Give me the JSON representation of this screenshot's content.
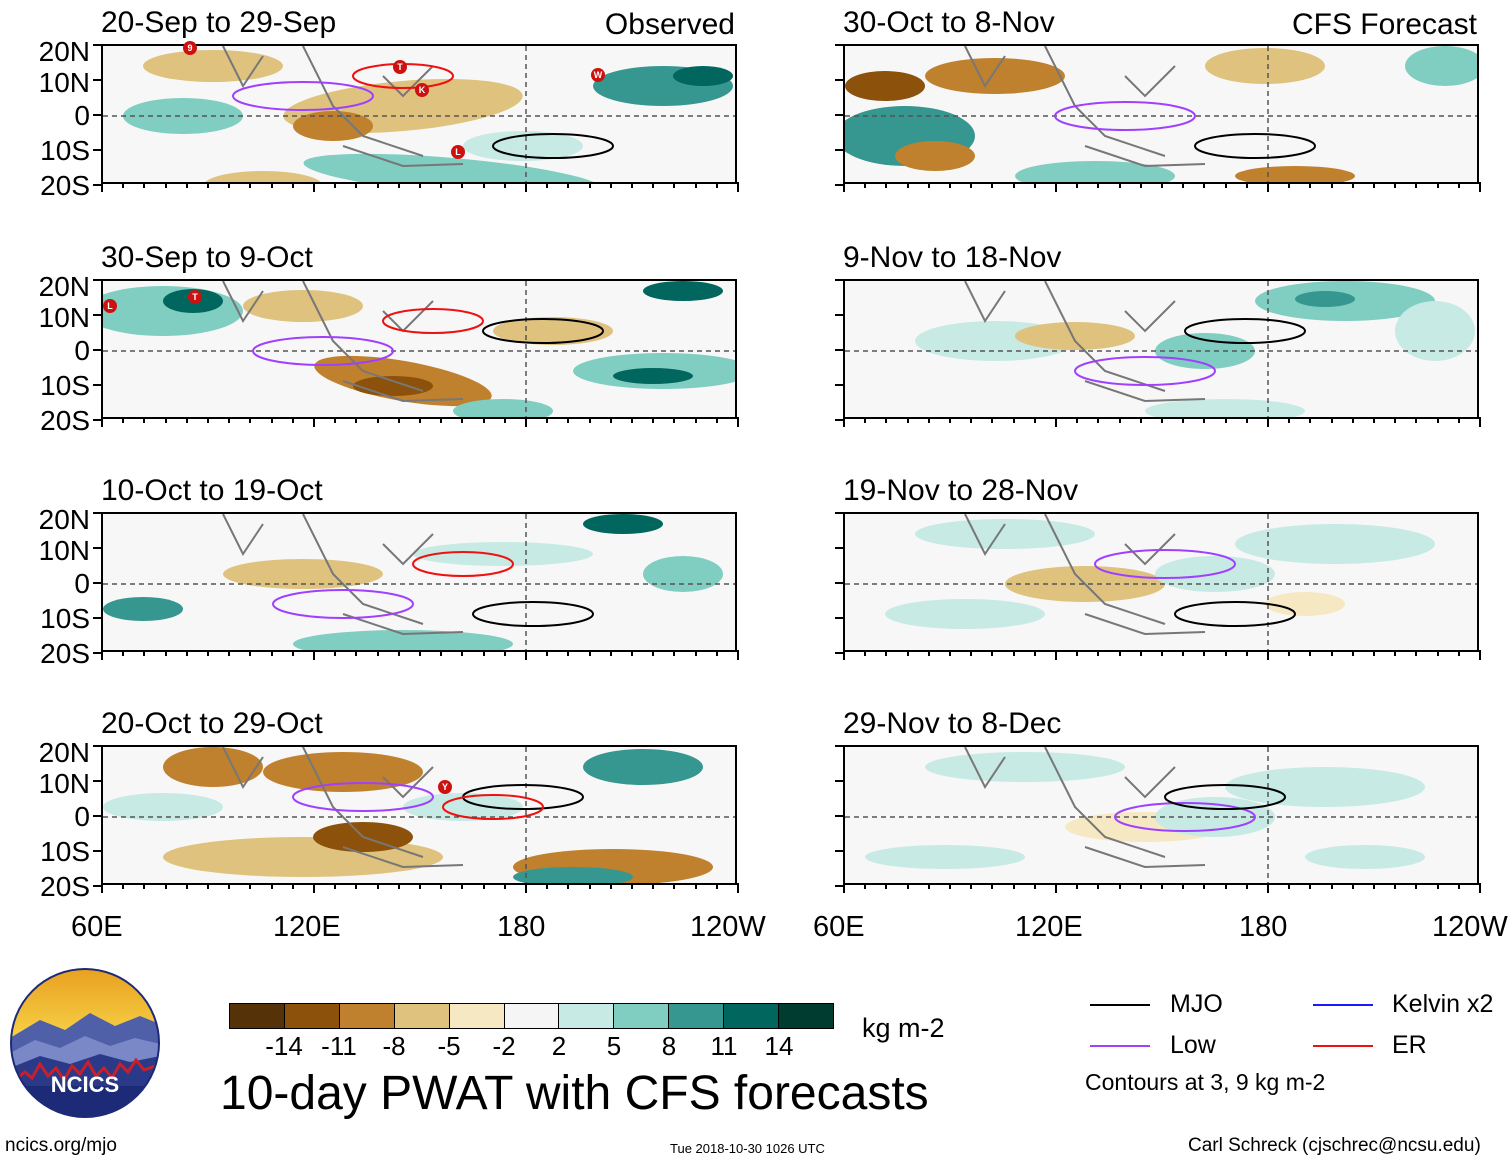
{
  "panels_left": [
    {
      "title": "20-Sep to 29-Sep",
      "header": "Observed"
    },
    {
      "title": "30-Sep to 9-Oct",
      "header": ""
    },
    {
      "title": "10-Oct to 19-Oct",
      "header": ""
    },
    {
      "title": "20-Oct to 29-Oct",
      "header": ""
    }
  ],
  "panels_right": [
    {
      "title": "30-Oct to 8-Nov",
      "header": "CFS Forecast"
    },
    {
      "title": "9-Nov to 18-Nov",
      "header": ""
    },
    {
      "title": "19-Nov to 28-Nov",
      "header": ""
    },
    {
      "title": "29-Nov to 8-Dec",
      "header": ""
    }
  ],
  "y_labels": [
    "20N",
    "10N",
    "0",
    "10S",
    "20S"
  ],
  "x_labels": [
    "60E",
    "120E",
    "180",
    "120W"
  ],
  "colorbar": {
    "colors": [
      "#553208",
      "#8c510a",
      "#bf812d",
      "#dfc27d",
      "#f6e8c3",
      "#f5f5f5",
      "#c7eae5",
      "#80cdc1",
      "#35978f",
      "#01665e",
      "#003c30"
    ],
    "labels": [
      "-14",
      "-11",
      "-8",
      "-5",
      "-2",
      "2",
      "5",
      "8",
      "11",
      "14"
    ],
    "units": "kg m-2"
  },
  "main_title": "10-day PWAT with CFS forecasts",
  "legend": {
    "mjo": {
      "label": "MJO",
      "color": "#000000"
    },
    "kelvin": {
      "label": "Kelvin x2",
      "color": "#1a1aff"
    },
    "low": {
      "label": "Low",
      "color": "#a040ff"
    },
    "er": {
      "label": "ER",
      "color": "#ee1111"
    },
    "note": "Contours at 3, 9 kg m-2"
  },
  "logo": {
    "text": "NCICS"
  },
  "footer": {
    "left": "ncics.org/mjo",
    "center": "Tue 2018-10-30 1026 UTC",
    "right": "Carl Schreck (cjschrec@ncsu.edu)"
  },
  "storm_labels": [
    "9",
    "T",
    "K",
    "W",
    "L",
    "L",
    "T",
    "Y"
  ]
}
